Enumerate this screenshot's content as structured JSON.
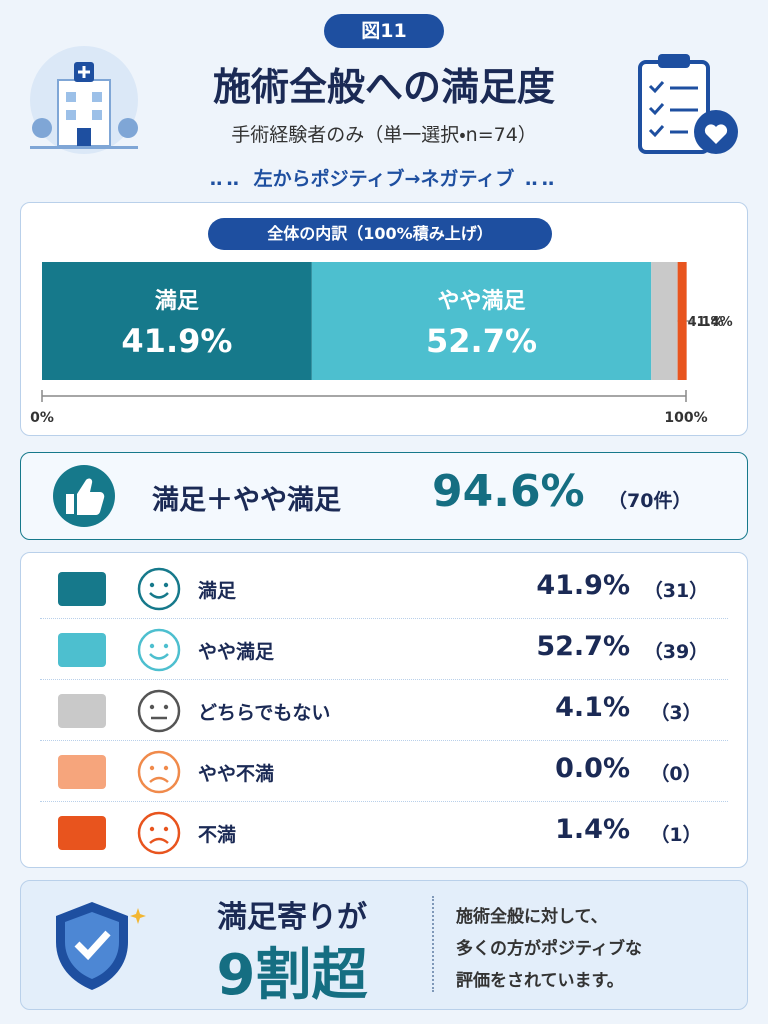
{
  "badge": "図11",
  "title": "施術全般への満足度",
  "subtitle": "手術経験者のみ（単一選択・n=74）",
  "direction_note": "左からポジティブ→ネガティブ",
  "chart_data": {
    "type": "stacked_bar",
    "title": "全体の内訳（100%積み上げ）",
    "categories": [
      "満足",
      "やや満足",
      "どちらでもない",
      "やや不満",
      "不満"
    ],
    "values": [
      41.9,
      52.7,
      4.1,
      0.0,
      1.4
    ],
    "value_labels": [
      "41.9%",
      "52.7%",
      "4.1%",
      "0.0%",
      "1.4%"
    ],
    "count_labels": [
      "（31）",
      "（39）",
      "（3）",
      "（0）",
      "（1）"
    ],
    "colors": [
      "#16798b",
      "#4dbfcf",
      "#c9c9c9",
      "#f6a57c",
      "#e8541e"
    ],
    "xlim": [
      0,
      100
    ],
    "xticks": [
      {
        "value": 0,
        "label": "0%"
      },
      {
        "value": 100,
        "label": "100%"
      }
    ]
  },
  "summary": {
    "label": "満足＋やや満足",
    "value_label": "94.6%",
    "count_label": "（70件）"
  },
  "conclusion": {
    "headline": "満足寄りが",
    "emphasis": "9割超",
    "note": [
      "施術全般に対して、",
      "多くの方がポジティブな",
      "評価をされています。"
    ]
  }
}
